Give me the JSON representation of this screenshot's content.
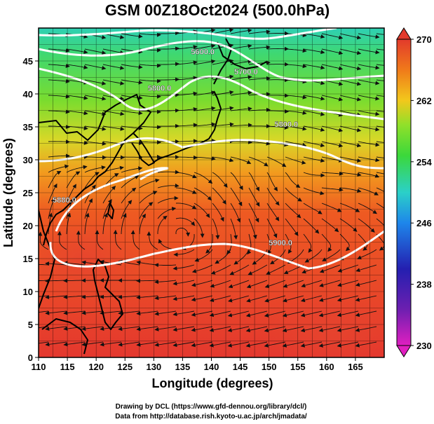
{
  "title": "GSM 00Z18Oct2024 (500.0hPa)",
  "xlabel": "Longitude (degrees)",
  "ylabel": "Latitude  (degrees)",
  "credits": [
    "Drawing by DCL (https://www.gfd-dennou.org/library/dcl/)",
    "Data from http://database.rish.kyoto-u.ac.jp/arch/jmadata/"
  ],
  "map": {
    "lon_range": [
      110,
      170
    ],
    "lat_range": [
      0,
      50
    ],
    "lon_ticks": [
      "110",
      "115",
      "120",
      "125",
      "130",
      "135",
      "140",
      "145",
      "150",
      "155",
      "160",
      "165"
    ],
    "lat_ticks": [
      "0",
      "5",
      "10",
      "15",
      "20",
      "25",
      "30",
      "35",
      "40",
      "45"
    ],
    "grid": true
  },
  "colorbar": {
    "range": [
      230,
      270
    ],
    "ticks": [
      "230",
      "238",
      "246",
      "254",
      "262",
      "270"
    ],
    "colors": [
      "#d81fb8",
      "#2a1fb0",
      "#1e7ee8",
      "#2bd0c8",
      "#3bd83b",
      "#a6e02a",
      "#f5c51d",
      "#f0761a",
      "#e23a2c"
    ]
  },
  "contours": [
    {
      "label": "5600.0",
      "label_lon": 138.5,
      "label_lat": 46.0
    },
    {
      "label": "5700.0",
      "label_lon": 146.0,
      "label_lat": 43.0
    },
    {
      "label": "5800.0",
      "label_lon": 131.0,
      "label_lat": 40.5
    },
    {
      "label": "5800.0",
      "label_lon": 153.0,
      "label_lat": 35.0
    },
    {
      "label": "5880.0",
      "label_lon": 114.5,
      "label_lat": 23.5
    },
    {
      "label": "5900.0",
      "label_lon": 152.0,
      "label_lat": 17.0
    }
  ]
}
